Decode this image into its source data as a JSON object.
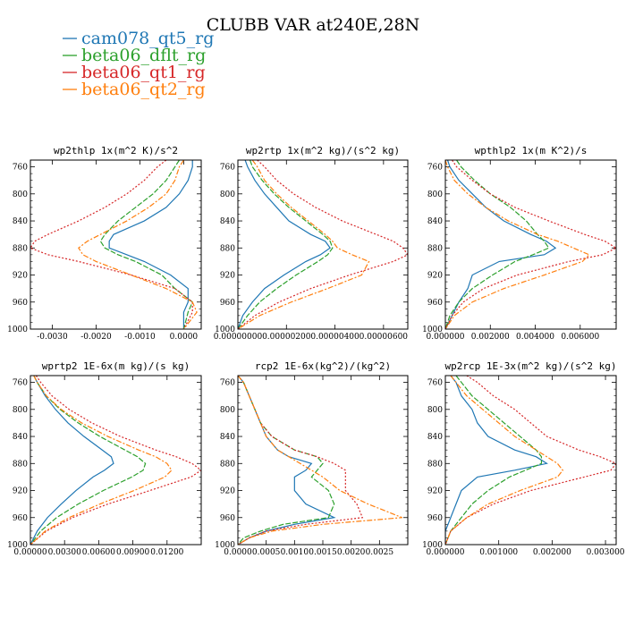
{
  "figure": {
    "title": "CLUBB VAR at240E,28N"
  },
  "legend": [
    {
      "name": "cam078_qt5_rg",
      "color": "#1f77b4"
    },
    {
      "name": "beta06_dflt_rg",
      "color": "#2ca02c"
    },
    {
      "name": "beta06_qt1_rg",
      "color": "#d62728"
    },
    {
      "name": "beta06_qt2_rg",
      "color": "#ff7f0e"
    }
  ],
  "chart_data": [
    {
      "type": "line",
      "title": "wp2thlp  1x(m^2 K)/s^2",
      "ylim": [
        1000,
        750
      ],
      "xlim": [
        -0.0035,
        0.0004
      ],
      "yticks": [
        760,
        800,
        840,
        880,
        920,
        960,
        1000
      ],
      "xticks": [
        -0.003,
        -0.002,
        -0.001,
        0.0
      ],
      "xticklabels": [
        "-0.0030",
        "-0.0020",
        "-0.0010",
        "0.0000"
      ],
      "y": [
        750,
        760,
        780,
        800,
        820,
        840,
        860,
        870,
        880,
        890,
        900,
        920,
        940,
        960,
        975,
        1000
      ],
      "series": [
        {
          "name": "cam078_qt5_rg",
          "values": [
            0.0002,
            0.0002,
            0.0001,
            -0.0001,
            -0.0004,
            -0.0009,
            -0.0016,
            -0.0017,
            -0.0017,
            -0.0013,
            -0.0009,
            -0.0003,
            0.0001,
            0.0001,
            0.0,
            0.0
          ]
        },
        {
          "name": "beta06_dflt_rg",
          "values": [
            -0.0001,
            -0.0002,
            -0.0004,
            -0.0007,
            -0.0011,
            -0.0015,
            -0.0018,
            -0.0019,
            -0.0018,
            -0.0015,
            -0.0011,
            -0.0005,
            -0.0002,
            0.0002,
            0.0001,
            0.0
          ]
        },
        {
          "name": "beta06_qt1_rg",
          "values": [
            -0.0004,
            -0.0006,
            -0.0009,
            -0.0013,
            -0.0018,
            -0.0024,
            -0.0031,
            -0.0034,
            -0.0035,
            -0.0031,
            -0.0024,
            -0.0012,
            -0.0002,
            0.0002,
            0.0002,
            0.0
          ]
        },
        {
          "name": "beta06_qt2_rg",
          "values": [
            0.0,
            -0.0001,
            -0.0002,
            -0.0004,
            -0.0008,
            -0.0013,
            -0.0019,
            -0.0022,
            -0.0024,
            -0.0023,
            -0.002,
            -0.0012,
            -0.0004,
            0.0002,
            0.0003,
            0.0
          ]
        }
      ]
    },
    {
      "type": "line",
      "title": "wp2rtp  1x(m^2 kg)/(s^2 kg)",
      "ylim": [
        1000,
        750
      ],
      "xlim": [
        0,
        7e-06
      ],
      "yticks": [
        760,
        800,
        840,
        880,
        920,
        960,
        1000
      ],
      "xticks": [
        0,
        2e-06,
        4e-06,
        6e-06
      ],
      "xticklabels": [
        "0.00000000",
        "0.00000200",
        "0.00000400",
        "0.00000600"
      ],
      "y": [
        750,
        760,
        780,
        800,
        820,
        840,
        860,
        870,
        880,
        890,
        900,
        920,
        940,
        960,
        980,
        1000
      ],
      "series": [
        {
          "name": "cam078_qt5_rg",
          "values": [
            3e-07,
            4e-07,
            7e-07,
            1.1e-06,
            1.6e-06,
            2.1e-06,
            3e-06,
            3.6e-06,
            3.8e-06,
            3.4e-06,
            2.8e-06,
            1.9e-06,
            1.1e-06,
            6e-07,
            2e-07,
            0.0
          ]
        },
        {
          "name": "beta06_dflt_rg",
          "values": [
            5e-07,
            6e-07,
            1e-06,
            1.5e-06,
            2.1e-06,
            2.8e-06,
            3.5e-06,
            3.8e-06,
            3.9e-06,
            3.7e-06,
            3.3e-06,
            2.4e-06,
            1.6e-06,
            9e-07,
            4e-07,
            0.0
          ]
        },
        {
          "name": "beta06_qt1_rg",
          "values": [
            8e-07,
            1.1e-06,
            1.6e-06,
            2.3e-06,
            3.2e-06,
            4.3e-06,
            5.7e-06,
            6.4e-06,
            6.8e-06,
            7e-06,
            6.4e-06,
            4.6e-06,
            3e-06,
            1.7e-06,
            7e-07,
            0.0
          ]
        },
        {
          "name": "beta06_qt2_rg",
          "values": [
            6e-07,
            8e-07,
            1.1e-06,
            1.6e-06,
            2.2e-06,
            2.9e-06,
            3.6e-06,
            3.9e-06,
            4.1e-06,
            4.7e-06,
            5.4e-06,
            5.1e-06,
            3.7e-06,
            2.2e-06,
            9e-07,
            0.0
          ]
        }
      ]
    },
    {
      "type": "line",
      "title": "wpthlp2  1x(m K^2)/s",
      "ylim": [
        1000,
        750
      ],
      "xlim": [
        0,
        0.0076
      ],
      "yticks": [
        760,
        800,
        840,
        880,
        920,
        960,
        1000
      ],
      "xticks": [
        0,
        0.002,
        0.004,
        0.006
      ],
      "xticklabels": [
        "0.000000",
        "0.002000",
        "0.004000",
        "0.006000"
      ],
      "y": [
        750,
        760,
        780,
        800,
        820,
        840,
        860,
        870,
        880,
        890,
        900,
        920,
        940,
        960,
        980,
        1000
      ],
      "series": [
        {
          "name": "cam078_qt5_rg",
          "values": [
            0.0001,
            0.0002,
            0.0006,
            0.0012,
            0.0018,
            0.0026,
            0.0038,
            0.0045,
            0.0049,
            0.0044,
            0.0024,
            0.0012,
            0.001,
            0.0006,
            0.0003,
            0.0
          ]
        },
        {
          "name": "beta06_dflt_rg",
          "values": [
            0.0005,
            0.0007,
            0.0013,
            0.002,
            0.0029,
            0.0036,
            0.0041,
            0.0044,
            0.0046,
            0.0039,
            0.0031,
            0.0021,
            0.0012,
            0.0006,
            0.0002,
            0.0
          ]
        },
        {
          "name": "beta06_qt1_rg",
          "values": [
            0.0003,
            0.0005,
            0.0012,
            0.002,
            0.0031,
            0.0046,
            0.0062,
            0.0071,
            0.0076,
            0.007,
            0.0055,
            0.0032,
            0.0017,
            0.0008,
            0.0003,
            0.0
          ]
        },
        {
          "name": "beta06_qt2_rg",
          "values": [
            0.0,
            0.0001,
            0.0004,
            0.001,
            0.0018,
            0.0028,
            0.0041,
            0.005,
            0.0057,
            0.0064,
            0.0061,
            0.0044,
            0.0026,
            0.0012,
            0.0004,
            0.0
          ]
        }
      ]
    },
    {
      "type": "line",
      "title": "wprtp2  1E-6x(m kg)/(s kg)",
      "ylim": [
        1000,
        750
      ],
      "xlim": [
        0,
        0.015
      ],
      "yticks": [
        760,
        800,
        840,
        880,
        920,
        960,
        1000
      ],
      "xticks": [
        0,
        0.003,
        0.006,
        0.009,
        0.012
      ],
      "xticklabels": [
        "0.00000",
        "0.00300",
        "0.00600",
        "0.00900",
        "0.01200"
      ],
      "y": [
        750,
        760,
        780,
        800,
        820,
        840,
        860,
        870,
        880,
        890,
        900,
        920,
        940,
        960,
        980,
        1000
      ],
      "series": [
        {
          "name": "cam078_qt5_rg",
          "values": [
            0.0003,
            0.0006,
            0.0013,
            0.0022,
            0.0033,
            0.0047,
            0.0063,
            0.0071,
            0.0073,
            0.0065,
            0.0055,
            0.004,
            0.0027,
            0.0015,
            0.0006,
            0.0
          ]
        },
        {
          "name": "beta06_dflt_rg",
          "values": [
            0.0003,
            0.0006,
            0.0014,
            0.0026,
            0.0042,
            0.0061,
            0.0083,
            0.0094,
            0.0101,
            0.0099,
            0.0089,
            0.0064,
            0.0042,
            0.0023,
            0.0009,
            0.0
          ]
        },
        {
          "name": "beta06_qt1_rg",
          "values": [
            0.0005,
            0.0009,
            0.0019,
            0.0034,
            0.0054,
            0.0079,
            0.011,
            0.0128,
            0.0142,
            0.015,
            0.0141,
            0.0105,
            0.0068,
            0.0037,
            0.0014,
            0.0
          ]
        },
        {
          "name": "beta06_qt2_rg",
          "values": [
            0.0003,
            0.0006,
            0.0014,
            0.0027,
            0.0045,
            0.0068,
            0.0095,
            0.011,
            0.012,
            0.0124,
            0.0118,
            0.0091,
            0.0061,
            0.0034,
            0.0013,
            0.0
          ]
        }
      ]
    },
    {
      "type": "line",
      "title": "rcp2  1E-6x(kg^2)/(kg^2)",
      "ylim": [
        1000,
        750
      ],
      "xlim": [
        0,
        0.003
      ],
      "yticks": [
        760,
        800,
        840,
        880,
        920,
        960,
        1000
      ],
      "xticks": [
        0,
        0.0005,
        0.001,
        0.0015,
        0.002,
        0.0025
      ],
      "xticklabels": [
        "0.0000",
        "0.0005",
        "0.0010",
        "0.0015",
        "0.0020",
        "0.0025"
      ],
      "y": [
        750,
        760,
        780,
        800,
        820,
        840,
        860,
        870,
        880,
        890,
        900,
        920,
        940,
        960,
        970,
        980,
        990,
        1000
      ],
      "series": [
        {
          "name": "cam078_qt5_rg",
          "values": [
            0.0,
            0.0001,
            0.0002,
            0.0003,
            0.0004,
            0.0005,
            0.0007,
            0.0009,
            0.0013,
            0.0012,
            0.001,
            0.001,
            0.0012,
            0.0017,
            0.001,
            0.0005,
            0.0002,
            0.0
          ]
        },
        {
          "name": "beta06_dflt_rg",
          "values": [
            0.0,
            0.0001,
            0.0002,
            0.0003,
            0.0004,
            0.0006,
            0.001,
            0.0014,
            0.0015,
            0.0014,
            0.0013,
            0.0016,
            0.0017,
            0.0016,
            0.0008,
            0.0004,
            0.0001,
            0.0
          ]
        },
        {
          "name": "beta06_qt1_rg",
          "values": [
            0.0,
            0.0001,
            0.0002,
            0.0003,
            0.0004,
            0.0006,
            0.001,
            0.0014,
            0.0017,
            0.0019,
            0.0019,
            0.0019,
            0.0021,
            0.0022,
            0.0012,
            0.0005,
            0.0002,
            0.0
          ]
        },
        {
          "name": "beta06_qt2_rg",
          "values": [
            0.0,
            0.0001,
            0.0002,
            0.0003,
            0.0004,
            0.0005,
            0.0007,
            0.0009,
            0.0011,
            0.0013,
            0.0015,
            0.0018,
            0.0023,
            0.0029,
            0.0015,
            0.0006,
            0.0002,
            0.0
          ]
        }
      ]
    },
    {
      "type": "line",
      "title": "wp2rcp  1E-3x(m^2 kg)/(s^2 kg)",
      "ylim": [
        1000,
        750
      ],
      "xlim": [
        0,
        0.0032
      ],
      "yticks": [
        760,
        800,
        840,
        880,
        920,
        960,
        1000
      ],
      "xticks": [
        0,
        0.001,
        0.002,
        0.003
      ],
      "xticklabels": [
        "0.000000",
        "0.001000",
        "0.002000",
        "0.003000"
      ],
      "y": [
        750,
        760,
        780,
        800,
        820,
        840,
        860,
        870,
        880,
        890,
        900,
        920,
        940,
        960,
        980,
        1000
      ],
      "series": [
        {
          "name": "cam078_qt5_rg",
          "values": [
            0.0001,
            0.0002,
            0.0003,
            0.0005,
            0.0006,
            0.0008,
            0.0013,
            0.0017,
            0.0019,
            0.0013,
            0.0006,
            0.0003,
            0.0002,
            0.0001,
            0.0,
            0.0
          ]
        },
        {
          "name": "beta06_dflt_rg",
          "values": [
            0.0002,
            0.0003,
            0.0005,
            0.0008,
            0.0011,
            0.0014,
            0.0017,
            0.0018,
            0.0018,
            0.0015,
            0.0012,
            0.0008,
            0.0005,
            0.0003,
            0.0001,
            0.0
          ]
        },
        {
          "name": "beta06_qt1_rg",
          "values": [
            0.0004,
            0.0006,
            0.0009,
            0.0013,
            0.0016,
            0.0019,
            0.0025,
            0.0029,
            0.0032,
            0.0031,
            0.0026,
            0.0016,
            0.0009,
            0.0004,
            0.0001,
            0.0
          ]
        },
        {
          "name": "beta06_qt2_rg",
          "values": [
            0.0001,
            0.0002,
            0.0004,
            0.0007,
            0.001,
            0.0013,
            0.0017,
            0.0019,
            0.0021,
            0.0022,
            0.0021,
            0.0014,
            0.0008,
            0.0004,
            0.0001,
            0.0
          ]
        }
      ]
    }
  ]
}
